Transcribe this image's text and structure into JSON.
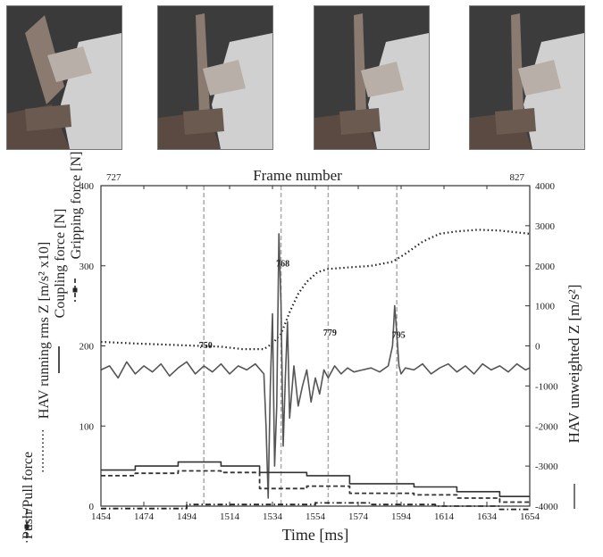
{
  "photos": [
    {
      "name": "frame-photo-1"
    },
    {
      "name": "frame-photo-2"
    },
    {
      "name": "frame-photo-3"
    },
    {
      "name": "frame-photo-4"
    }
  ],
  "chart_data": {
    "type": "line",
    "title": "Frame number",
    "frame_start_label": "727",
    "frame_end_label": "827",
    "xlabel": "Time [ms]",
    "xlim": [
      1454,
      1654
    ],
    "x_ticks": [
      "1454",
      "1474",
      "1494",
      "1514",
      "1534",
      "1554",
      "1574",
      "1594",
      "1614",
      "1634",
      "1654"
    ],
    "ylim_left": [
      0,
      400
    ],
    "y_left_ticks": [
      "0",
      "100",
      "200",
      "300",
      "400"
    ],
    "ylim_right": [
      -4000,
      4000
    ],
    "y_right_ticks": [
      "-4000",
      "-3000",
      "-2000",
      "-1000",
      "0",
      "1000",
      "2000",
      "3000",
      "4000"
    ],
    "ylabel_right": "HAV unweighted Z [m/s²]",
    "left_labels": [
      {
        "text": "Gripping force [N]",
        "style": "dash-square"
      },
      {
        "text": "Coupling force [N]",
        "style": "solid"
      },
      {
        "text": "HAV running rms Z [m/s² x10]",
        "style": "dotted"
      },
      {
        "text": "Push/Pull force",
        "style": "dash-dot"
      }
    ],
    "frame_markers": [
      {
        "label": "750",
        "x": 1502
      },
      {
        "label": "768",
        "x": 1538
      },
      {
        "label": "779",
        "x": 1560
      },
      {
        "label": "795",
        "x": 1592
      }
    ],
    "series": [
      {
        "role": "hav_rms",
        "axis": "left",
        "style": "dotted",
        "color": "#222222",
        "x": [
          1454,
          1470,
          1490,
          1500,
          1510,
          1520,
          1530,
          1534,
          1538,
          1542,
          1546,
          1550,
          1555,
          1560,
          1570,
          1580,
          1590,
          1596,
          1604,
          1612,
          1620,
          1630,
          1640,
          1654
        ],
        "y": [
          205,
          203,
          201,
          200,
          199,
          196,
          196,
          203,
          215,
          242,
          265,
          280,
          292,
          296,
          298,
          300,
          305,
          315,
          330,
          340,
          343,
          345,
          344,
          340
        ]
      },
      {
        "role": "hav_unweighted",
        "axis": "right",
        "style": "solid",
        "color": "#555555",
        "x": [
          1454,
          1458,
          1462,
          1466,
          1470,
          1474,
          1478,
          1482,
          1486,
          1490,
          1494,
          1498,
          1502,
          1506,
          1510,
          1514,
          1518,
          1522,
          1526,
          1530,
          1531,
          1532,
          1533,
          1534,
          1535,
          1536,
          1537,
          1538,
          1539,
          1540,
          1541,
          1542,
          1544,
          1546,
          1548,
          1550,
          1552,
          1554,
          1556,
          1558,
          1560,
          1563,
          1566,
          1569,
          1572,
          1576,
          1580,
          1584,
          1588,
          1590,
          1591,
          1592,
          1593,
          1594,
          1596,
          1600,
          1604,
          1608,
          1612,
          1616,
          1620,
          1624,
          1628,
          1632,
          1636,
          1640,
          1644,
          1648,
          1652,
          1654
        ],
        "y": [
          -600,
          -500,
          -800,
          -400,
          -700,
          -500,
          -650,
          -450,
          -750,
          -550,
          -400,
          -700,
          -500,
          -650,
          -450,
          -700,
          -500,
          -600,
          -450,
          -700,
          -2000,
          -3800,
          -1000,
          800,
          -3000,
          -1500,
          2800,
          1000,
          -2500,
          -800,
          600,
          -1800,
          -500,
          -1500,
          -1000,
          -600,
          -1400,
          -800,
          -1200,
          -600,
          -800,
          -500,
          -700,
          -550,
          -650,
          -600,
          -550,
          -650,
          -500,
          0,
          1000,
          300,
          -500,
          -700,
          -550,
          -600,
          -450,
          -700,
          -550,
          -450,
          -650,
          -500,
          -700,
          -450,
          -600,
          -500,
          -650,
          -450,
          -600,
          -550
        ]
      },
      {
        "role": "coupling_force",
        "axis": "left",
        "style": "solid",
        "color": "#333333",
        "x": [
          1454,
          1470,
          1470,
          1490,
          1490,
          1510,
          1510,
          1528,
          1528,
          1550,
          1550,
          1570,
          1570,
          1600,
          1600,
          1620,
          1620,
          1640,
          1640,
          1654
        ],
        "y": [
          45,
          45,
          50,
          50,
          55,
          55,
          50,
          50,
          42,
          42,
          38,
          38,
          28,
          28,
          24,
          24,
          18,
          18,
          12,
          12
        ]
      },
      {
        "role": "gripping_force",
        "axis": "left",
        "style": "dash-square",
        "color": "#333333",
        "x": [
          1454,
          1470,
          1470,
          1490,
          1490,
          1510,
          1510,
          1528,
          1528,
          1550,
          1550,
          1570,
          1570,
          1600,
          1600,
          1620,
          1620,
          1640,
          1640,
          1654
        ],
        "y": [
          38,
          38,
          41,
          41,
          44,
          44,
          42,
          42,
          22,
          22,
          25,
          25,
          16,
          16,
          14,
          14,
          10,
          10,
          5,
          5
        ]
      },
      {
        "role": "push_pull_force",
        "axis": "left",
        "style": "dash-dot",
        "color": "#222222",
        "x": [
          1454,
          1494,
          1494,
          1554,
          1554,
          1580,
          1580,
          1610,
          1610,
          1640,
          1640,
          1654
        ],
        "y": [
          -3,
          -3,
          2,
          2,
          4,
          4,
          2,
          2,
          0,
          0,
          -4,
          -4
        ]
      }
    ]
  }
}
